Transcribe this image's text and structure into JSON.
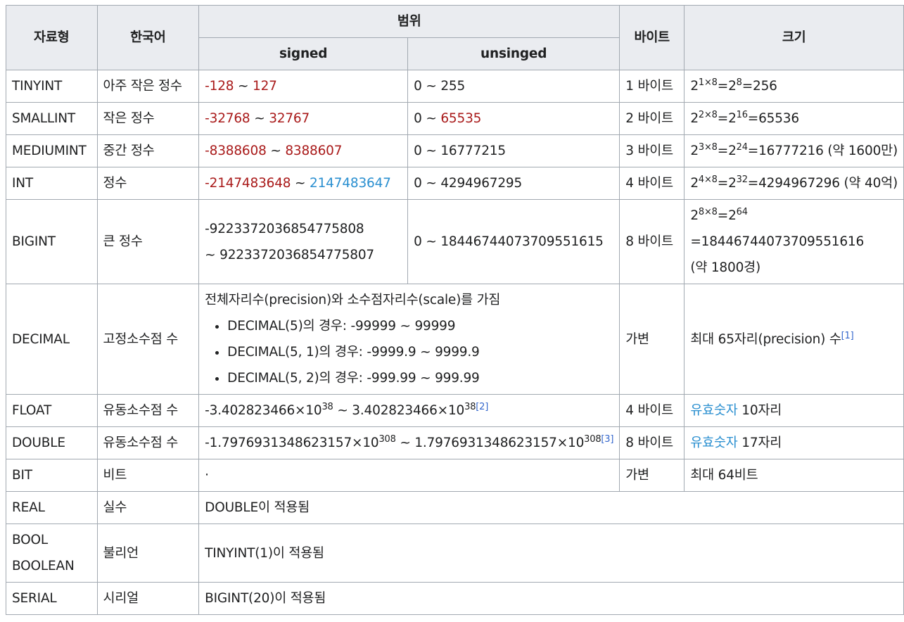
{
  "header": {
    "type": "자료형",
    "korean": "한국어",
    "range": "범위",
    "signed": "signed",
    "unsigned": "unsinged",
    "bytes": "바이트",
    "size": "크기"
  },
  "colors": {
    "negative": "#a91a1a",
    "positive": "#2a8fd0",
    "link": "#3366cc"
  },
  "rows": {
    "tinyint": {
      "type": "TINYINT",
      "kr": "아주 작은 정수",
      "s_min": "-128",
      "tilde": "~",
      "s_max": "127",
      "u_lo": "0 ~ 255",
      "bytes": "1 바이트",
      "size": {
        "b1": "2",
        "e1": "1×8",
        "m1": "=2",
        "e2": "8",
        "m2": "=256"
      }
    },
    "smallint": {
      "type": "SMALLINT",
      "kr": "작은 정수",
      "s_min": "-32768",
      "tilde": "~",
      "s_max": "32767",
      "u_lo": "0 ~",
      "u_max": "65535",
      "bytes": "2 바이트",
      "size": {
        "b1": "2",
        "e1": "2×8",
        "m1": "=2",
        "e2": "16",
        "m2": "=65536"
      }
    },
    "mediumint": {
      "type": "MEDIUMINT",
      "kr": "중간 정수",
      "s_min": "-8388608",
      "tilde": "~",
      "s_max": "8388607",
      "u_lo": "0 ~ 16777215",
      "bytes": "3 바이트",
      "size": {
        "b1": "2",
        "e1": "3×8",
        "m1": "=2",
        "e2": "24",
        "m2": "=16777216 (약 1600만)"
      }
    },
    "int": {
      "type": "INT",
      "kr": "정수",
      "s_min": "-2147483648",
      "tilde": "~",
      "s_max": "2147483647",
      "u_lo": "0 ~ 4294967295",
      "bytes": "4 바이트",
      "size": {
        "b1": "2",
        "e1": "4×8",
        "m1": "=2",
        "e2": "32",
        "m2": "=4294967296 (약 40억)"
      }
    },
    "bigint": {
      "type": "BIGINT",
      "kr": "큰 정수",
      "s_line1": "-9223372036854775808",
      "s_line2": "~ 9223372036854775807",
      "u_lo": "0 ~ 18446744073709551615",
      "bytes": "8 바이트",
      "size": {
        "b1": "2",
        "e1": "8×8",
        "m1": "=2",
        "e2": "64",
        "line2": "=18446744073709551616",
        "line3": "(약 1800경)"
      }
    },
    "decimal": {
      "type": "DECIMAL",
      "kr": "고정소수점 수",
      "intro": "전체자리수(precision)와 소수점자리수(scale)를 가짐",
      "items": [
        "DECIMAL(5)의 경우: -99999 ~ 99999",
        "DECIMAL(5, 1)의 경우: -9999.9 ~ 9999.9",
        "DECIMAL(5, 2)의 경우: -999.99 ~ 999.99"
      ],
      "bytes": "가변",
      "size": "최대 65자리(precision) 수",
      "ref": "[1]"
    },
    "float": {
      "type": "FLOAT",
      "kr": "유동소수점 수",
      "r1": "-3.402823466×10",
      "e1": "38",
      "r2": " ~ 3.402823466×10",
      "e2": "38",
      "ref": "[2]",
      "bytes": "4 바이트",
      "size_link": "유효숫자",
      "size": " 10자리"
    },
    "double": {
      "type": "DOUBLE",
      "kr": "유동소수점 수",
      "r1": "-1.7976931348623157×10",
      "e1": "308",
      "r2": " ~ 1.7976931348623157×10",
      "e2": "308",
      "ref": "[3]",
      "bytes": "8 바이트",
      "size_link": "유효숫자",
      "size": " 17자리"
    },
    "bit": {
      "type": "BIT",
      "kr": "비트",
      "range": "·",
      "bytes": "가변",
      "size": "최대 64비트"
    },
    "real": {
      "type": "REAL",
      "kr": "실수",
      "note": "DOUBLE이 적용됨"
    },
    "bool": {
      "type1": "BOOL",
      "type2": "BOOLEAN",
      "kr": "불리언",
      "note": "TINYINT(1)이 적용됨"
    },
    "serial": {
      "type": "SERIAL",
      "kr": "시리얼",
      "note": "BIGINT(20)이 적용됨"
    }
  }
}
